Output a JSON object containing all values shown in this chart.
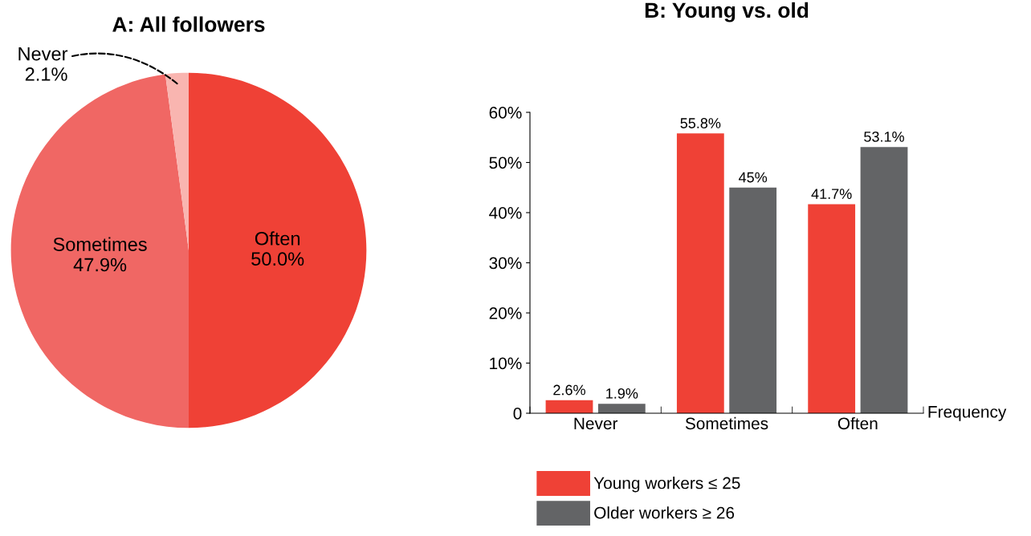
{
  "chart_data": [
    {
      "type": "pie",
      "title": "A: All followers",
      "categories": [
        "Often",
        "Sometimes",
        "Never"
      ],
      "values": [
        50.0,
        47.9,
        2.1
      ],
      "colors": [
        "#ef4136",
        "#f06764",
        "#f9b5b0"
      ],
      "value_labels": [
        "50.0%",
        "47.9%",
        "2.1%"
      ]
    },
    {
      "type": "bar",
      "title": "B: Young vs. old",
      "xlabel": "Frequency",
      "categories": [
        "Never",
        "Sometimes",
        "Often"
      ],
      "series": [
        {
          "name": "Young workers ≤ 25",
          "color": "#ef4136",
          "values": [
            2.6,
            55.8,
            41.7
          ],
          "value_labels": [
            "2.6%",
            "55.8%",
            "41.7%"
          ]
        },
        {
          "name": "Older workers ≥ 26",
          "color": "#636466",
          "values": [
            1.9,
            45,
            53.1
          ],
          "value_labels": [
            "1.9%",
            "45%",
            "53.1%"
          ]
        }
      ],
      "ylim": [
        0,
        60
      ],
      "yticks": [
        0,
        {
          "value": 10,
          "label": "10%"
        },
        {
          "value": 20,
          "label": "20%"
        },
        {
          "value": 30,
          "label": "30%"
        },
        {
          "value": 40,
          "label": "40%"
        },
        {
          "value": 50,
          "label": "50%"
        },
        {
          "value": 60,
          "label": "60%"
        }
      ],
      "grid": false,
      "legend": "bottom left"
    }
  ]
}
